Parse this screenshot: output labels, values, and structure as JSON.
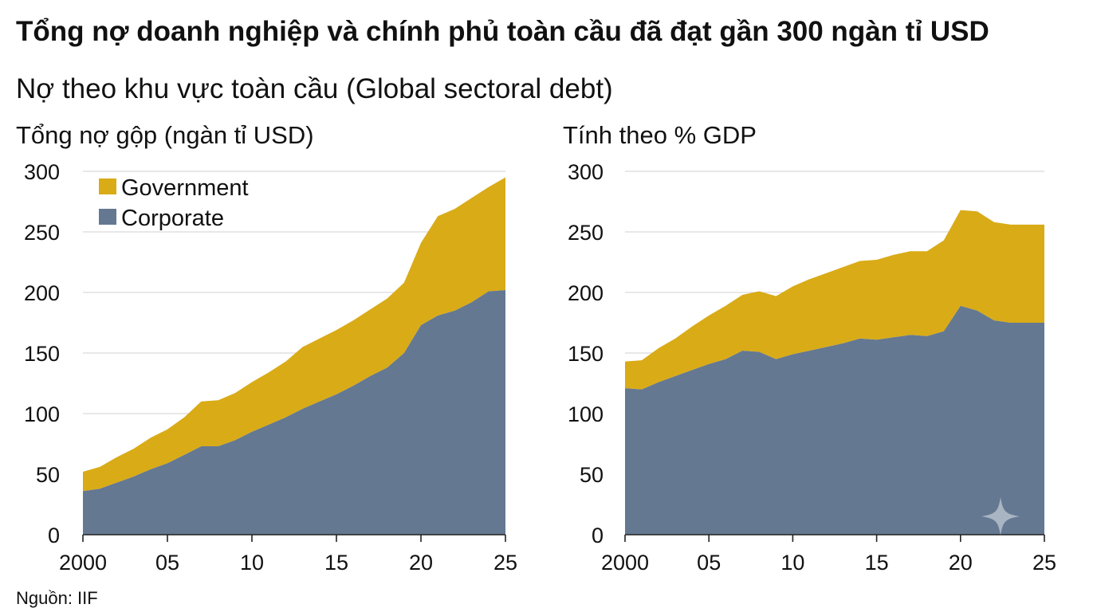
{
  "title": "Tổng nợ doanh nghiệp và chính phủ toàn cầu đã đạt gần 300 ngàn tỉ USD",
  "subtitle": "Nợ theo khu vực toàn cầu (Global sectoral debt)",
  "source": "Nguồn: IIF",
  "colors": {
    "government": "#d9ab17",
    "corporate": "#647892",
    "grid": "#d9d9d9"
  },
  "chart_data": [
    {
      "type": "area",
      "stacked": true,
      "title": "Tổng nợ gộp (ngàn tỉ USD)",
      "xlabel": "",
      "ylabel": "",
      "x": [
        2000,
        2001,
        2002,
        2003,
        2004,
        2005,
        2006,
        2007,
        2008,
        2009,
        2010,
        2011,
        2012,
        2013,
        2014,
        2015,
        2016,
        2017,
        2018,
        2019,
        2020,
        2021,
        2022,
        2023,
        2024,
        2025
      ],
      "xlim": [
        2000,
        2025
      ],
      "ylim": [
        0,
        300
      ],
      "x_ticks": [
        2000,
        2005,
        2010,
        2015,
        2020,
        2025
      ],
      "x_tick_labels": [
        "2000",
        "05",
        "10",
        "15",
        "20",
        "25"
      ],
      "y_ticks": [
        0,
        50,
        100,
        150,
        200,
        250,
        300
      ],
      "y_tick_labels": [
        "0",
        "50",
        "100",
        "150",
        "200",
        "250",
        "300"
      ],
      "grid": true,
      "legend": "top-left",
      "series": [
        {
          "name": "Corporate",
          "color": "#647892",
          "values": [
            36,
            38,
            43,
            48,
            54,
            59,
            66,
            73,
            73,
            78,
            85,
            91,
            97,
            104,
            110,
            116,
            123,
            131,
            138,
            150,
            173,
            181,
            185,
            192,
            201,
            202
          ]
        },
        {
          "name": "Government",
          "color": "#d9ab17",
          "values": [
            16,
            18,
            21,
            23,
            26,
            28,
            31,
            37,
            38,
            39,
            41,
            43,
            46,
            51,
            52,
            53,
            54,
            55,
            57,
            58,
            68,
            82,
            84,
            86,
            86,
            93
          ]
        }
      ]
    },
    {
      "type": "area",
      "stacked": true,
      "title": "Tính theo % GDP",
      "xlabel": "",
      "ylabel": "",
      "x": [
        2000,
        2001,
        2002,
        2003,
        2004,
        2005,
        2006,
        2007,
        2008,
        2009,
        2010,
        2011,
        2012,
        2013,
        2014,
        2015,
        2016,
        2017,
        2018,
        2019,
        2020,
        2021,
        2022,
        2023,
        2024,
        2025
      ],
      "xlim": [
        2000,
        2025
      ],
      "ylim": [
        0,
        300
      ],
      "x_ticks": [
        2000,
        2005,
        2010,
        2015,
        2020,
        2025
      ],
      "x_tick_labels": [
        "2000",
        "05",
        "10",
        "15",
        "20",
        "25"
      ],
      "y_ticks": [
        0,
        50,
        100,
        150,
        200,
        250,
        300
      ],
      "y_tick_labels": [
        "0",
        "50",
        "100",
        "150",
        "200",
        "250",
        "300"
      ],
      "grid": true,
      "series": [
        {
          "name": "Corporate",
          "color": "#647892",
          "values": [
            121,
            120,
            126,
            131,
            136,
            141,
            145,
            152,
            151,
            145,
            149,
            152,
            155,
            158,
            162,
            161,
            163,
            165,
            164,
            168,
            189,
            185,
            177,
            175,
            175,
            175
          ]
        },
        {
          "name": "Government",
          "color": "#d9ab17",
          "values": [
            22,
            24,
            28,
            31,
            36,
            40,
            44,
            46,
            50,
            52,
            56,
            59,
            61,
            63,
            64,
            66,
            68,
            69,
            70,
            75,
            79,
            82,
            81,
            81,
            81,
            81
          ]
        }
      ]
    }
  ]
}
